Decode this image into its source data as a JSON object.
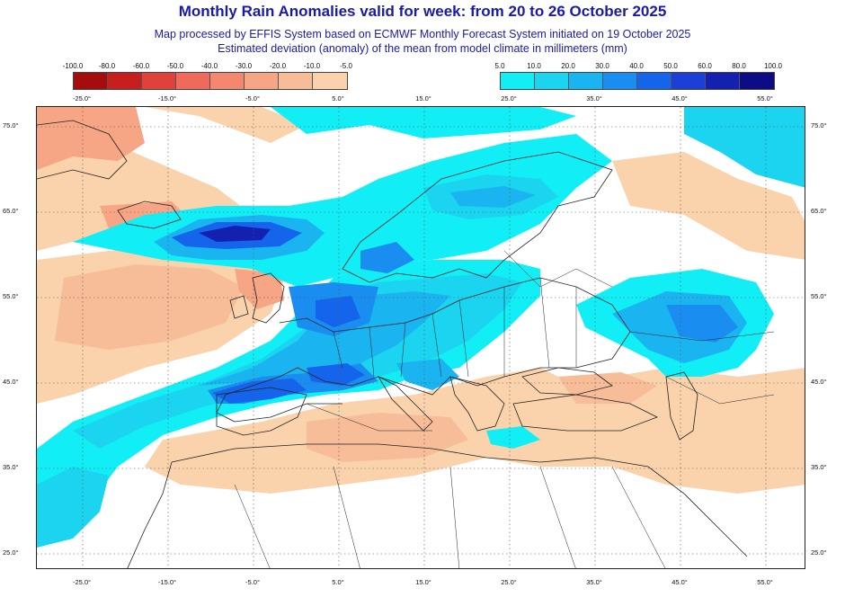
{
  "header": {
    "title": "Monthly Rain Anomalies valid for week: from 20 to 26 October 2025",
    "subtitle_line1": "Map processed by EFFIS System based on ECMWF Monthly Forecast System initiated on 19 October 2025",
    "subtitle_line2": "Estimated deviation (anomaly) of the mean from model climate in millimeters (mm)"
  },
  "colorbar_negative": {
    "labels": [
      "-100.0",
      "-80.0",
      "-60.0",
      "-50.0",
      "-40.0",
      "-30.0",
      "-20.0",
      "-10.0",
      "-5.0"
    ],
    "colors": [
      "#a50d0d",
      "#c81e1e",
      "#e0413b",
      "#ef6a5a",
      "#f4886f",
      "#f6a585",
      "#f7bc98",
      "#fad3ad"
    ]
  },
  "colorbar_positive": {
    "labels": [
      "5.0",
      "10.0",
      "20.0",
      "30.0",
      "40.0",
      "50.0",
      "60.0",
      "80.0",
      "100.0"
    ],
    "colors": [
      "#12eef5",
      "#1ad4f0",
      "#1ab4f0",
      "#1a8ef0",
      "#1465ec",
      "#1a40d8",
      "#1420b0",
      "#0c0c86"
    ]
  },
  "axes": {
    "lon_labels": [
      "-25.0°",
      "-15.0°",
      "-5.0°",
      "5.0°",
      "15.0°",
      "25.0°",
      "35.0°",
      "45.0°",
      "55.0°"
    ],
    "lat_labels": [
      "75.0°",
      "65.0°",
      "55.0°",
      "45.0°",
      "35.0°",
      "25.0°"
    ]
  },
  "map": {
    "colors": {
      "land_line": "#222222",
      "grid_line": "#555555",
      "deficit_light": "#fad3ad",
      "deficit_mid": "#f6a585",
      "deficit_strong": "#ef6a5a",
      "surplus_1": "#12eef5",
      "surplus_2": "#1ad4f0",
      "surplus_3": "#1ab4f0",
      "surplus_4": "#1a8ef0",
      "surplus_5": "#1465ec",
      "surplus_6": "#1a40d8",
      "surplus_7": "#1420b0"
    }
  }
}
